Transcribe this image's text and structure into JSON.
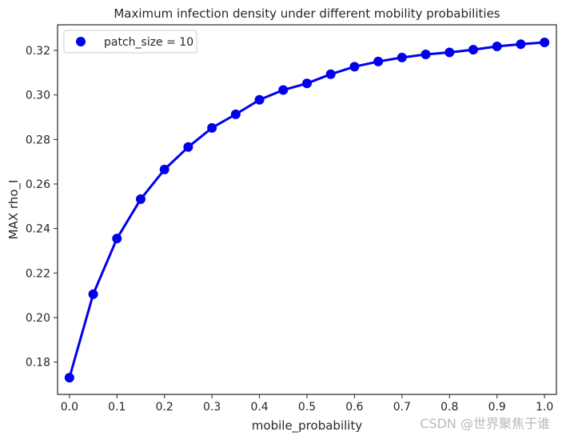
{
  "chart_data": {
    "type": "line",
    "title": "Maximum infection density under different mobility probabilities",
    "xlabel": "mobile_probability",
    "ylabel": "MAX rho_I",
    "xlim": [
      -0.025,
      1.025
    ],
    "ylim": [
      0.1655,
      0.3315
    ],
    "xticks": [
      0.0,
      0.1,
      0.2,
      0.3,
      0.4,
      0.5,
      0.6,
      0.7,
      0.8,
      0.9,
      1.0
    ],
    "xtick_labels": [
      "0.0",
      "0.1",
      "0.2",
      "0.3",
      "0.4",
      "0.5",
      "0.6",
      "0.7",
      "0.8",
      "0.9",
      "1.0"
    ],
    "yticks": [
      0.18,
      0.2,
      0.22,
      0.24,
      0.26,
      0.28,
      0.3,
      0.32
    ],
    "ytick_labels": [
      "0.18",
      "0.20",
      "0.22",
      "0.24",
      "0.26",
      "0.28",
      "0.30",
      "0.32"
    ],
    "grid": false,
    "legend_position": "upper-left",
    "series": [
      {
        "name": "patch_size = 10",
        "color": "#0000ee",
        "x": [
          0.0,
          0.05,
          0.1,
          0.15,
          0.2,
          0.25,
          0.3,
          0.35,
          0.4,
          0.45,
          0.5,
          0.55,
          0.6,
          0.65,
          0.7,
          0.75,
          0.8,
          0.85,
          0.9,
          0.95,
          1.0
        ],
        "y": [
          0.173,
          0.2105,
          0.2355,
          0.2532,
          0.2665,
          0.2766,
          0.2852,
          0.2913,
          0.2978,
          0.3022,
          0.3052,
          0.3093,
          0.3127,
          0.315,
          0.3168,
          0.3182,
          0.3191,
          0.3203,
          0.3218,
          0.3228,
          0.3236
        ]
      }
    ]
  },
  "watermark": "CSDN @世界聚焦于谁"
}
